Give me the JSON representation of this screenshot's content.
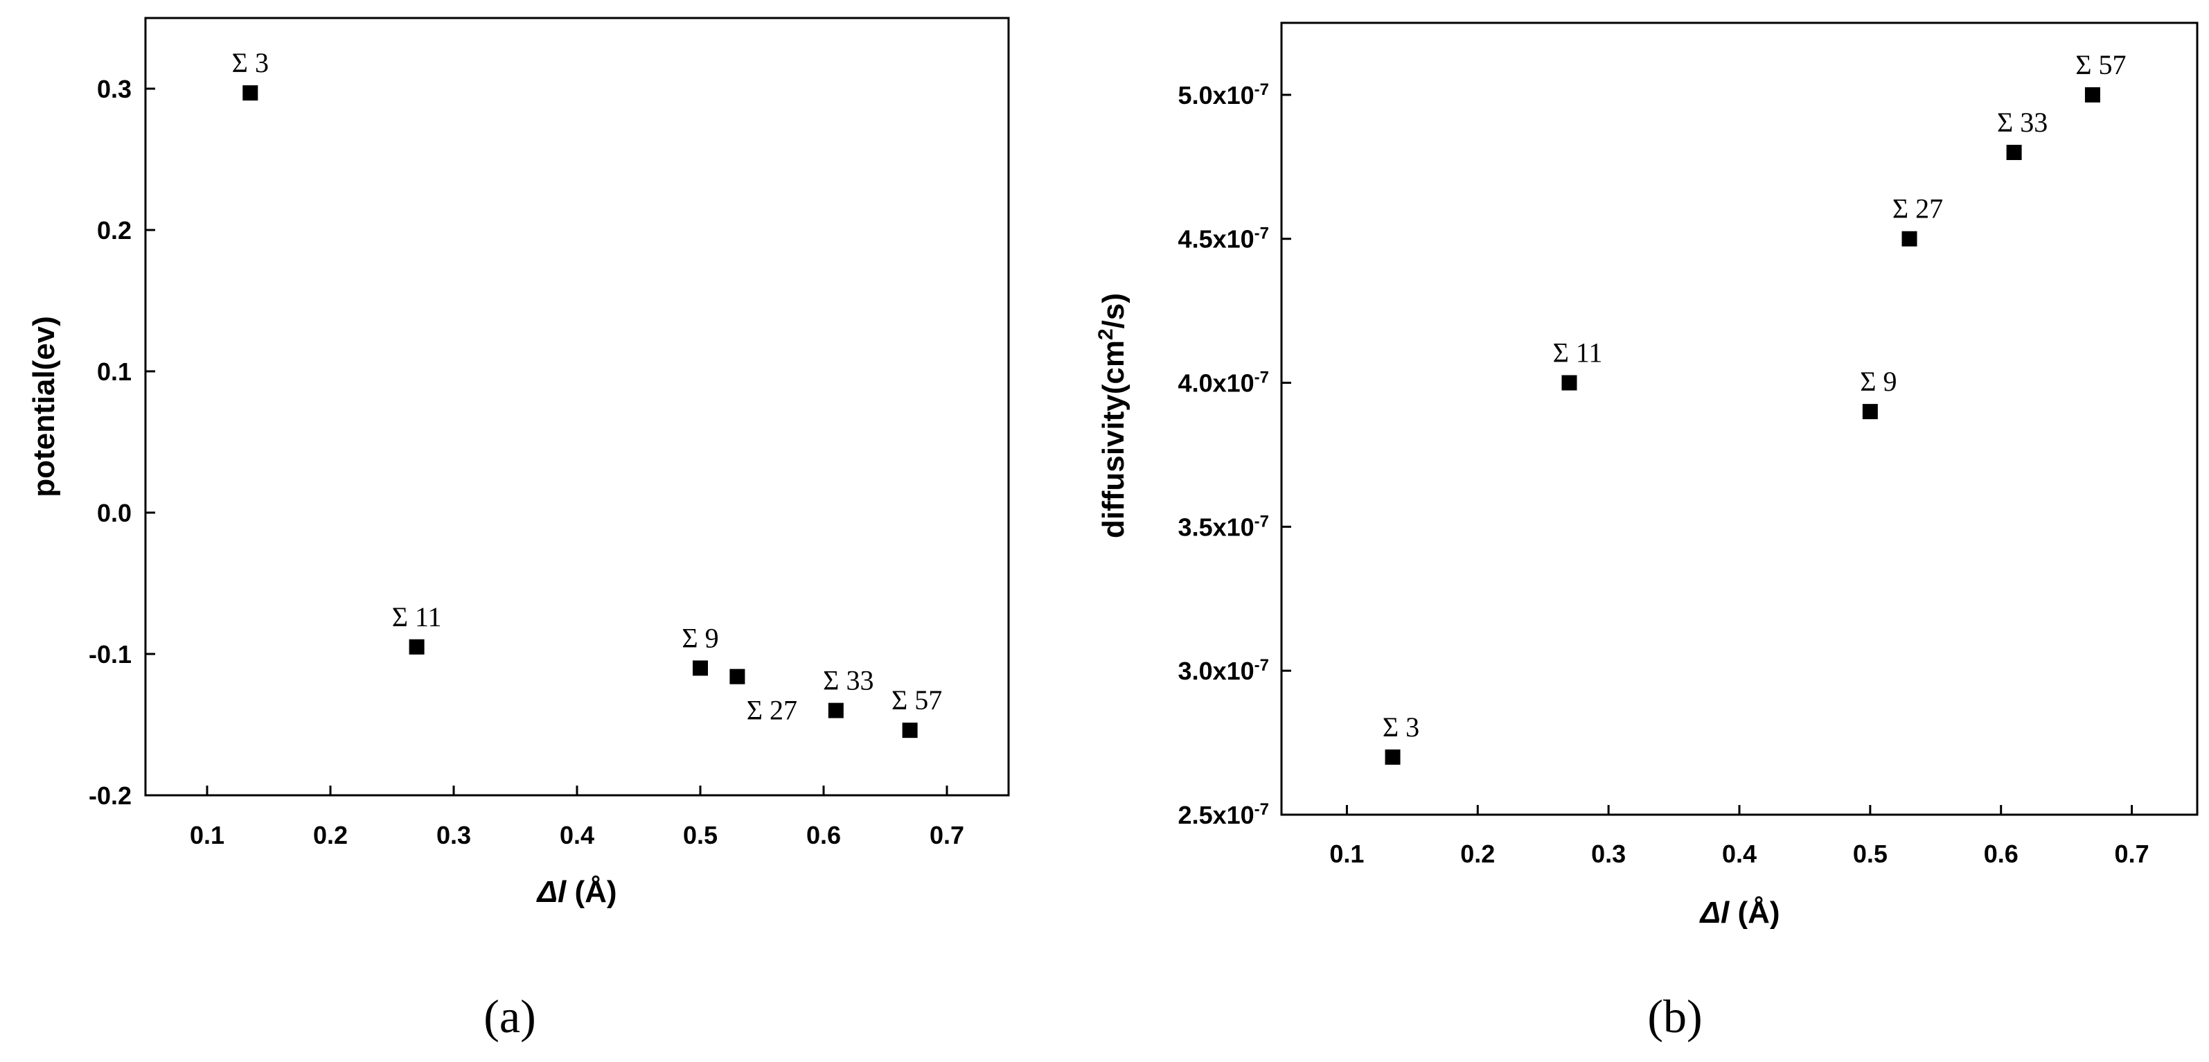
{
  "chart_data": [
    {
      "type": "scatter",
      "panel_label": "(a)",
      "xlabel": "Δl (Å)",
      "ylabel": "potential(ev)",
      "xlim": [
        0.05,
        0.75
      ],
      "ylim": [
        -0.2,
        0.35
      ],
      "x_ticks": [
        "0.1",
        "0.2",
        "0.3",
        "0.4",
        "0.5",
        "0.6",
        "0.7"
      ],
      "x_tick_values": [
        0.1,
        0.2,
        0.3,
        0.4,
        0.5,
        0.6,
        0.7
      ],
      "y_ticks": [
        "-0.2",
        "-0.1",
        "0.0",
        "0.1",
        "0.2",
        "0.3"
      ],
      "y_tick_values": [
        -0.2,
        -0.1,
        0.0,
        0.1,
        0.2,
        0.3
      ],
      "points": [
        {
          "label": "Σ 3",
          "x": 0.135,
          "y": 0.297
        },
        {
          "label": "Σ 11",
          "x": 0.27,
          "y": -0.095
        },
        {
          "label": "Σ 9",
          "x": 0.5,
          "y": -0.11
        },
        {
          "label": "Σ 27",
          "x": 0.53,
          "y": -0.116
        },
        {
          "label": "Σ 33",
          "x": 0.61,
          "y": -0.14
        },
        {
          "label": "Σ 57",
          "x": 0.67,
          "y": -0.154
        }
      ],
      "marker": "filled-square",
      "color": "#000000",
      "grid": false
    },
    {
      "type": "scatter",
      "panel_label": "(b)",
      "xlabel": "Δl (Å)",
      "ylabel": "diffusivity(cm²/s)",
      "xlim": [
        0.05,
        0.75
      ],
      "ylim": [
        2.5e-07,
        5.25e-07
      ],
      "x_ticks": [
        "0.1",
        "0.2",
        "0.3",
        "0.4",
        "0.5",
        "0.6",
        "0.7"
      ],
      "x_tick_values": [
        0.1,
        0.2,
        0.3,
        0.4,
        0.5,
        0.6,
        0.7
      ],
      "y_ticks": [
        "2.5x10",
        "3.0x10",
        "3.5x10",
        "4.0x10",
        "4.5x10",
        "5.0x10"
      ],
      "y_tick_exponent": "-7",
      "y_tick_values": [
        2.5e-07,
        3e-07,
        3.5e-07,
        4e-07,
        4.5e-07,
        5e-07
      ],
      "points": [
        {
          "label": "Σ 3",
          "x": 0.135,
          "y": 2.7e-07
        },
        {
          "label": "Σ 11",
          "x": 0.27,
          "y": 4e-07
        },
        {
          "label": "Σ 9",
          "x": 0.5,
          "y": 3.9e-07
        },
        {
          "label": "Σ 27",
          "x": 0.53,
          "y": 4.5e-07
        },
        {
          "label": "Σ 33",
          "x": 0.61,
          "y": 4.8e-07
        },
        {
          "label": "Σ 57",
          "x": 0.67,
          "y": 5e-07
        }
      ],
      "marker": "filled-square",
      "color": "#000000",
      "grid": false
    }
  ]
}
